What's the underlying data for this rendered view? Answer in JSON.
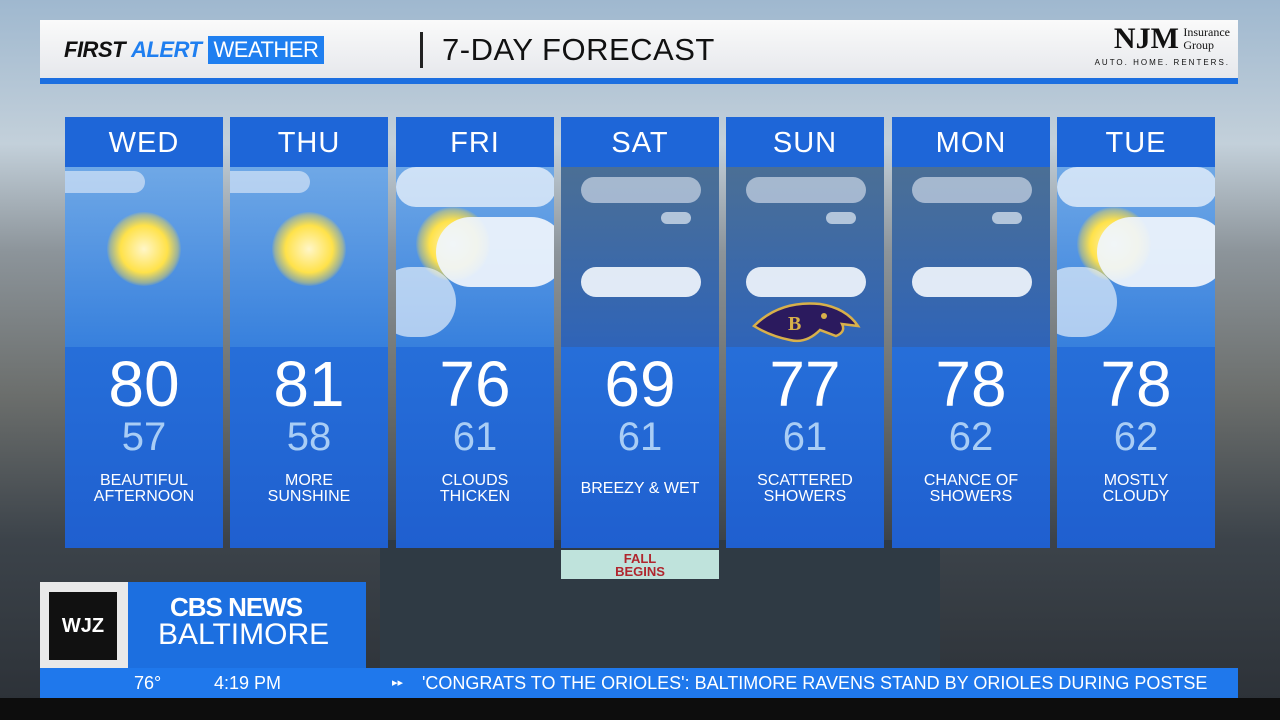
{
  "header": {
    "brand_first": "FIRST",
    "brand_alert": "ALERT",
    "brand_weather": "WEATHER",
    "title": "7-DAY FORECAST",
    "sponsor": {
      "name": "NJM",
      "sub1": "Insurance",
      "sub2": "Group",
      "tagline": "AUTO. HOME. RENTERS."
    }
  },
  "forecast": [
    {
      "day": "WED",
      "high": "80",
      "low": "57",
      "desc": "BEAUTIFUL AFTERNOON",
      "icon": "sunny-icon"
    },
    {
      "day": "THU",
      "high": "81",
      "low": "58",
      "desc": "MORE SUNSHINE",
      "icon": "sunny-icon"
    },
    {
      "day": "FRI",
      "high": "76",
      "low": "61",
      "desc": "CLOUDS THICKEN",
      "icon": "partly-cloudy-icon"
    },
    {
      "day": "SAT",
      "high": "69",
      "low": "61",
      "desc": "BREEZY & WET",
      "icon": "rain-icon"
    },
    {
      "day": "SUN",
      "high": "77",
      "low": "61",
      "desc": "SCATTERED SHOWERS",
      "icon": "rain-icon"
    },
    {
      "day": "MON",
      "high": "78",
      "low": "62",
      "desc": "CHANCE OF SHOWERS",
      "icon": "rain-icon"
    },
    {
      "day": "TUE",
      "high": "78",
      "low": "62",
      "desc": "MOSTLY CLOUDY",
      "icon": "partly-cloudy-icon"
    }
  ],
  "fall_badge": {
    "line1": "FALL",
    "line2": "BEGINS"
  },
  "station": {
    "call": "WJZ",
    "network": "CBS NEWS",
    "city": "BALTIMORE"
  },
  "ticker": {
    "temp": "76°",
    "time": "4:19 PM",
    "headline": "'CONGRATS TO THE ORIOLES': BALTIMORE RAVENS STAND BY ORIOLES DURING POSTSE"
  },
  "colors": {
    "accent": "#1f78ec",
    "panel": "#2873dc"
  }
}
